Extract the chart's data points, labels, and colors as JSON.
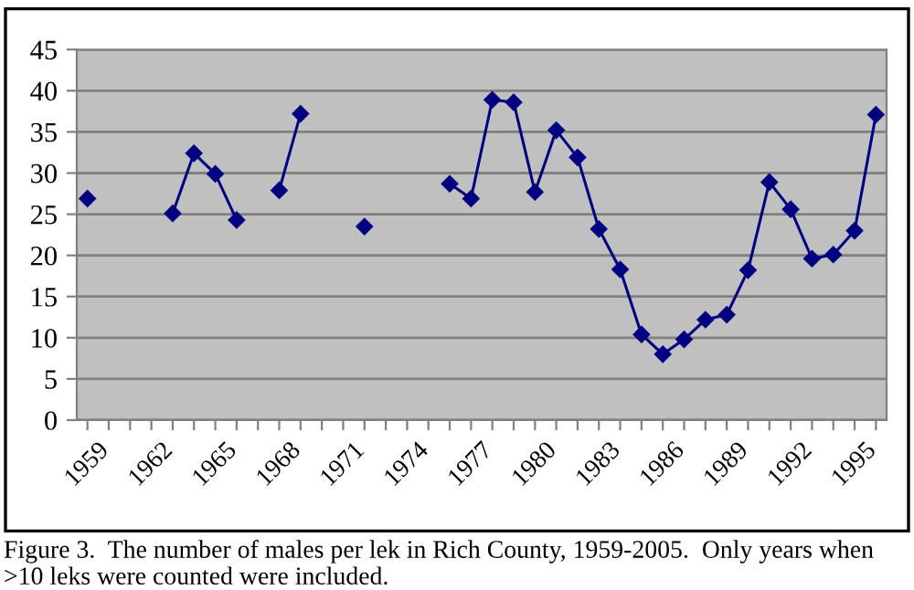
{
  "chart_data": {
    "type": "line",
    "categories": [
      "1959",
      null,
      null,
      "1962",
      null,
      null,
      "1965",
      null,
      null,
      "1968",
      null,
      null,
      "1971",
      null,
      null,
      "1974",
      null,
      null,
      "1977",
      null,
      null,
      "1980",
      null,
      null,
      "1983",
      null,
      null,
      "1986",
      null,
      null,
      "1989",
      null,
      null,
      "1992",
      null,
      null,
      "1995",
      null
    ],
    "series": [
      {
        "color": "#000080",
        "values": [
          26.9,
          null,
          null,
          null,
          25.1,
          32.4,
          29.9,
          24.3,
          null,
          27.9,
          37.2,
          null,
          null,
          23.5,
          null,
          null,
          null,
          28.7,
          26.9,
          38.9,
          38.6,
          27.7,
          35.2,
          31.9,
          23.2,
          18.3,
          10.4,
          8.0,
          9.8,
          12.2,
          12.8,
          18.2,
          28.9,
          25.6,
          19.6,
          20.1,
          23.0,
          37.1
        ]
      }
    ],
    "ylim": [
      0,
      45
    ],
    "yticks": [
      0,
      5,
      10,
      15,
      20,
      25,
      30,
      35,
      40,
      45
    ],
    "grid": "y",
    "marker": "diamond",
    "line_style": "solid",
    "legend": false,
    "annotations": [
      "Figure 3.  The number of males per lek in Rich County, 1959-2005.  Only years when >10 leks were counted were included."
    ]
  }
}
